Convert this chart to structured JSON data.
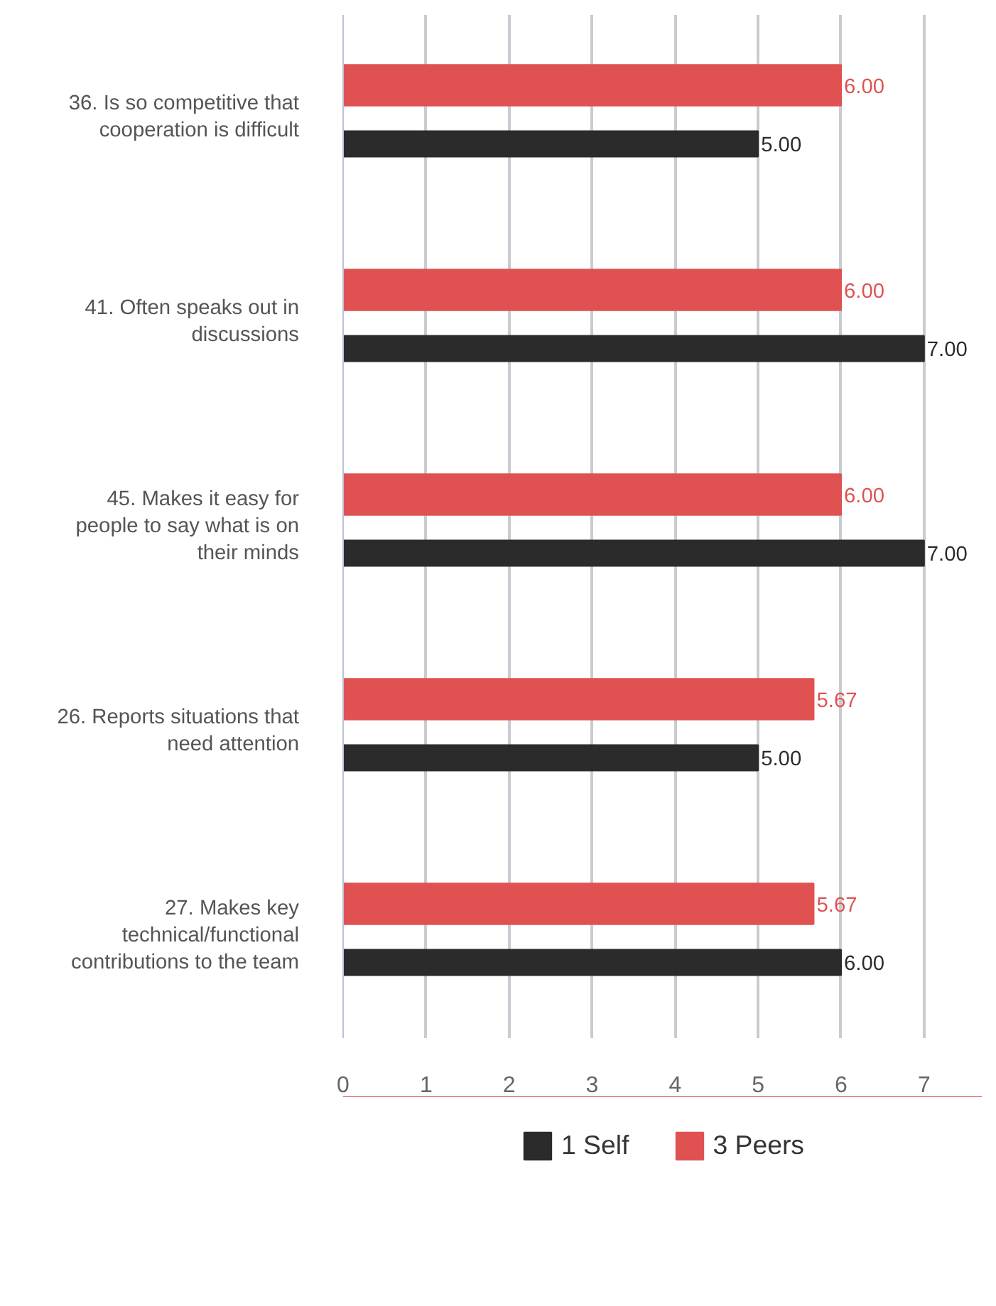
{
  "chart_data": {
    "type": "bar",
    "orientation": "horizontal",
    "categories": [
      "36. Is so competitive that cooperation is difficult",
      "41. Often speaks out in discussions",
      "45. Makes it easy for people to say what is on their minds",
      "26. Reports situations that need attention",
      "27. Makes key technical/functional contributions to the team"
    ],
    "series": [
      {
        "name": "1 Self",
        "color": "#2b2b2b",
        "values": [
          5.0,
          7.0,
          7.0,
          5.0,
          6.0
        ],
        "value_labels": [
          "5.00",
          "7.00",
          "7.00",
          "5.00",
          "6.00"
        ]
      },
      {
        "name": "3 Peers",
        "color": "#e05252",
        "values": [
          6.0,
          6.0,
          6.0,
          5.67,
          5.67
        ],
        "value_labels": [
          "6.00",
          "6.00",
          "6.00",
          "5.67",
          "5.67"
        ]
      }
    ],
    "xlim": [
      0,
      7
    ],
    "xticks": [
      0,
      1,
      2,
      3,
      4,
      5,
      6,
      7
    ],
    "grid": "x",
    "legend": "bottom"
  }
}
